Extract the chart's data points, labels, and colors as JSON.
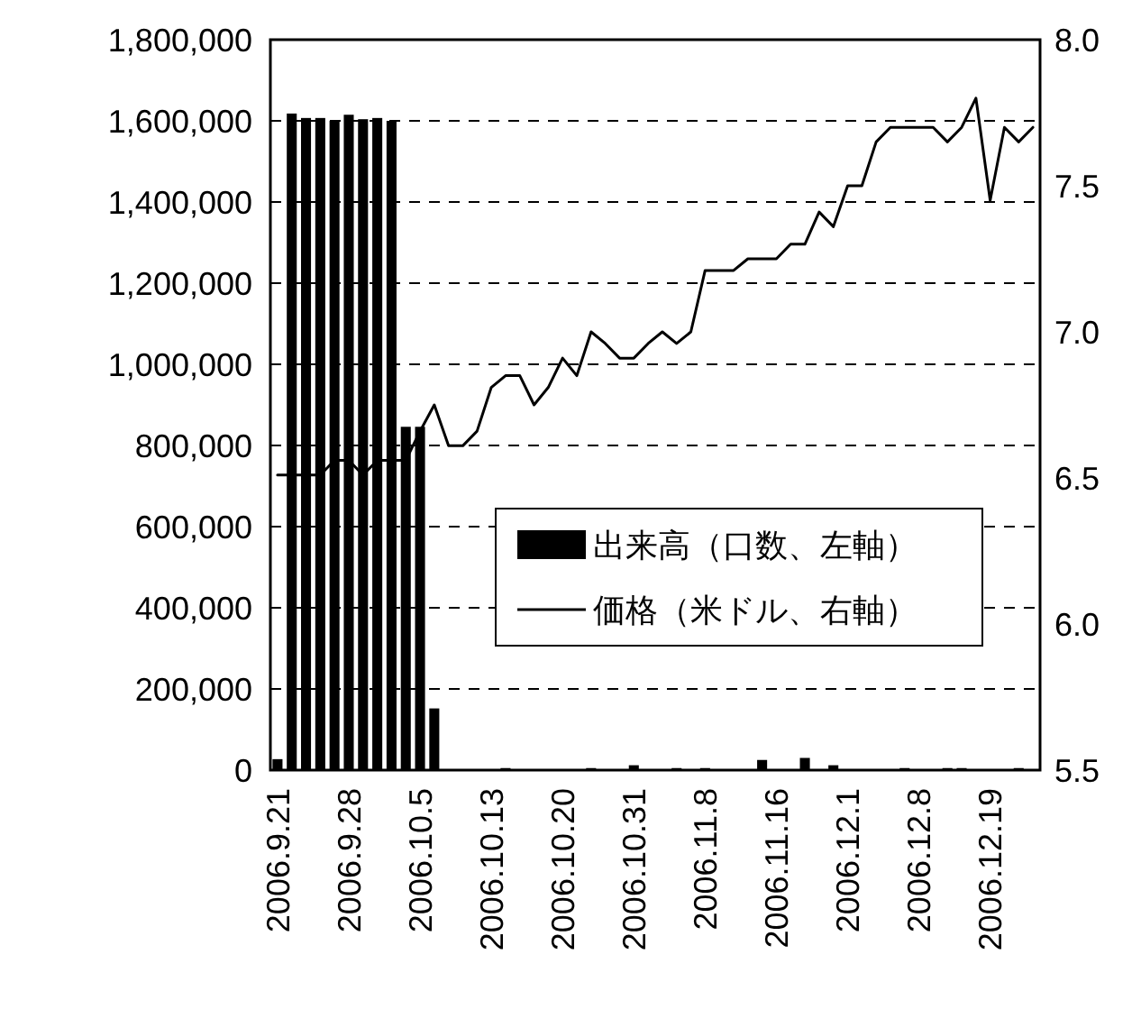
{
  "chart_data": {
    "type": "bar",
    "categories": [
      "2006.9.21",
      null,
      null,
      null,
      null,
      "2006.9.28",
      null,
      null,
      null,
      null,
      "2006.10.5",
      null,
      null,
      null,
      null,
      "2006.10.13",
      null,
      null,
      null,
      null,
      "2006.10.20",
      null,
      null,
      null,
      null,
      "2006.10.31",
      null,
      null,
      null,
      null,
      "2006.11.8",
      null,
      null,
      null,
      null,
      "2006.11.16",
      null,
      null,
      null,
      null,
      "2006.12.1",
      null,
      null,
      null,
      null,
      "2006.12.8",
      null,
      null,
      null,
      null,
      "2006.12.19",
      null,
      null,
      null
    ],
    "series": [
      {
        "name": "出来高（口数、左軸）",
        "color": "#000000",
        "values": [
          27000,
          1618000,
          1607000,
          1607000,
          1600000,
          1615000,
          1604000,
          1607000,
          1600000,
          846000,
          846000,
          152000,
          0,
          0,
          0,
          0,
          5000,
          0,
          0,
          0,
          0,
          0,
          5000,
          0,
          0,
          12000,
          0,
          0,
          5000,
          0,
          5000,
          0,
          0,
          0,
          25000,
          0,
          0,
          30000,
          0,
          12000,
          0,
          0,
          0,
          0,
          5000,
          0,
          0,
          5000,
          5000,
          0,
          0,
          0,
          5000,
          0
        ]
      },
      {
        "name": "価格（米ドル、右軸）",
        "type": "line",
        "axis": "y2",
        "color": "#000000",
        "values": [
          6.51,
          6.51,
          6.51,
          6.51,
          6.56,
          6.56,
          6.51,
          6.56,
          6.56,
          6.56,
          6.66,
          6.75,
          6.61,
          6.61,
          6.66,
          6.81,
          6.85,
          6.85,
          6.75,
          6.81,
          6.91,
          6.85,
          7.0,
          6.96,
          6.91,
          6.91,
          6.96,
          7.0,
          6.96,
          7.0,
          7.21,
          7.21,
          7.21,
          7.25,
          7.25,
          7.25,
          7.3,
          7.3,
          7.41,
          7.36,
          7.5,
          7.5,
          7.65,
          7.7,
          7.7,
          7.7,
          7.7,
          7.65,
          7.7,
          7.8,
          7.45,
          7.7,
          7.65,
          7.7
        ]
      }
    ],
    "ylim": [
      0,
      1800000
    ],
    "yticks": [
      0,
      {
        "value": 200000,
        "label": "200,000"
      },
      {
        "value": 400000,
        "label": "400,000"
      },
      {
        "value": 600000,
        "label": "600,000"
      },
      {
        "value": 800000,
        "label": "800,000"
      },
      {
        "value": 1000000,
        "label": "1,000,000"
      },
      {
        "value": 1200000,
        "label": "1,200,000"
      },
      {
        "value": 1400000,
        "label": "1,400,000"
      },
      {
        "value": 1600000,
        "label": "1,600,000"
      },
      {
        "value": 1800000,
        "label": "1,800,000"
      }
    ],
    "y2lim": [
      5.5,
      8.0
    ],
    "y2ticks": [
      5.5,
      {
        "value": 6,
        "label": "6.0"
      },
      6.5,
      {
        "value": 7,
        "label": "7.0"
      },
      7.5,
      {
        "value": 8,
        "label": "8.0"
      }
    ],
    "grid": "y",
    "legend": "right"
  }
}
